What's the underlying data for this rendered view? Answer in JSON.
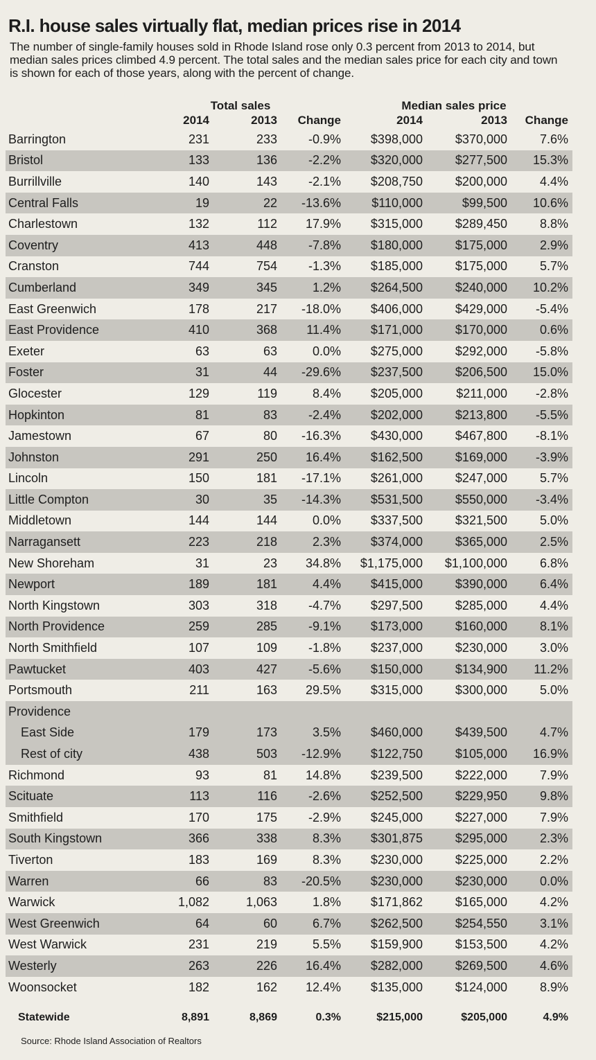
{
  "header": {
    "title": "R.I. house sales virtually flat, median prices rise in 2014",
    "subtitle": "The number of single-family houses sold in Rhode Island rose only 0.3 percent from 2013 to 2014, but median sales prices climbed 4.9 percent. The total sales and the median sales price for each city and town is shown for each of those years, along with the percent of change."
  },
  "table": {
    "group_headers": [
      "Total sales",
      "Median sales price"
    ],
    "columns": [
      "2014",
      "2013",
      "Change",
      "2014",
      "2013",
      "Change"
    ],
    "rows": [
      [
        "Barrington",
        "231",
        "233",
        "-0.9%",
        "$398,000",
        "$370,000",
        "7.6%"
      ],
      [
        "Bristol",
        "133",
        "136",
        "-2.2%",
        "$320,000",
        "$277,500",
        "15.3%"
      ],
      [
        "Burrillville",
        "140",
        "143",
        "-2.1%",
        "$208,750",
        "$200,000",
        "4.4%"
      ],
      [
        "Central Falls",
        "19",
        "22",
        "-13.6%",
        "$110,000",
        "$99,500",
        "10.6%"
      ],
      [
        "Charlestown",
        "132",
        "112",
        "17.9%",
        "$315,000",
        "$289,450",
        "8.8%"
      ],
      [
        "Coventry",
        "413",
        "448",
        "-7.8%",
        "$180,000",
        "$175,000",
        "2.9%"
      ],
      [
        "Cranston",
        "744",
        "754",
        "-1.3%",
        "$185,000",
        "$175,000",
        "5.7%"
      ],
      [
        "Cumberland",
        "349",
        "345",
        "1.2%",
        "$264,500",
        "$240,000",
        "10.2%"
      ],
      [
        "East Greenwich",
        "178",
        "217",
        "-18.0%",
        "$406,000",
        "$429,000",
        "-5.4%"
      ],
      [
        "East Providence",
        "410",
        "368",
        "11.4%",
        "$171,000",
        "$170,000",
        "0.6%"
      ],
      [
        "Exeter",
        "63",
        "63",
        "0.0%",
        "$275,000",
        "$292,000",
        "-5.8%"
      ],
      [
        "Foster",
        "31",
        "44",
        "-29.6%",
        "$237,500",
        "$206,500",
        "15.0%"
      ],
      [
        "Glocester",
        "129",
        "119",
        "8.4%",
        "$205,000",
        "$211,000",
        "-2.8%"
      ],
      [
        "Hopkinton",
        "81",
        "83",
        "-2.4%",
        "$202,000",
        "$213,800",
        "-5.5%"
      ],
      [
        "Jamestown",
        "67",
        "80",
        "-16.3%",
        "$430,000",
        "$467,800",
        "-8.1%"
      ],
      [
        "Johnston",
        "291",
        "250",
        "16.4%",
        "$162,500",
        "$169,000",
        "-3.9%"
      ],
      [
        "Lincoln",
        "150",
        "181",
        "-17.1%",
        "$261,000",
        "$247,000",
        "5.7%"
      ],
      [
        "Little Compton",
        "30",
        "35",
        "-14.3%",
        "$531,500",
        "$550,000",
        "-3.4%"
      ],
      [
        "Middletown",
        "144",
        "144",
        "0.0%",
        "$337,500",
        "$321,500",
        "5.0%"
      ],
      [
        "Narragansett",
        "223",
        "218",
        "2.3%",
        "$374,000",
        "$365,000",
        "2.5%"
      ],
      [
        "New Shoreham",
        "31",
        "23",
        "34.8%",
        "$1,175,000",
        "$1,100,000",
        "6.8%"
      ],
      [
        "Newport",
        "189",
        "181",
        "4.4%",
        "$415,000",
        "$390,000",
        "6.4%"
      ],
      [
        "North Kingstown",
        "303",
        "318",
        "-4.7%",
        "$297,500",
        "$285,000",
        "4.4%"
      ],
      [
        "North Providence",
        "259",
        "285",
        "-9.1%",
        "$173,000",
        "$160,000",
        "8.1%"
      ],
      [
        "North Smithfield",
        "107",
        "109",
        "-1.8%",
        "$237,000",
        "$230,000",
        "3.0%"
      ],
      [
        "Pawtucket",
        "403",
        "427",
        "-5.6%",
        "$150,000",
        "$134,900",
        "11.2%"
      ],
      [
        "Portsmouth",
        "211",
        "163",
        "29.5%",
        "$315,000",
        "$300,000",
        "5.0%"
      ],
      {
        "name": "Providence",
        "subrows": [
          [
            "East Side",
            "179",
            "173",
            "3.5%",
            "$460,000",
            "$439,500",
            "4.7%"
          ],
          [
            "Rest of city",
            "438",
            "503",
            "-12.9%",
            "$122,750",
            "$105,000",
            "16.9%"
          ]
        ]
      },
      [
        "Richmond",
        "93",
        "81",
        "14.8%",
        "$239,500",
        "$222,000",
        "7.9%"
      ],
      [
        "Scituate",
        "113",
        "116",
        "-2.6%",
        "$252,500",
        "$229,950",
        "9.8%"
      ],
      [
        "Smithfield",
        "170",
        "175",
        "-2.9%",
        "$245,000",
        "$227,000",
        "7.9%"
      ],
      [
        "South Kingstown",
        "366",
        "338",
        "8.3%",
        "$301,875",
        "$295,000",
        "2.3%"
      ],
      [
        "Tiverton",
        "183",
        "169",
        "8.3%",
        "$230,000",
        "$225,000",
        "2.2%"
      ],
      [
        "Warren",
        "66",
        "83",
        "-20.5%",
        "$230,000",
        "$230,000",
        "0.0%"
      ],
      [
        "Warwick",
        "1,082",
        "1,063",
        "1.8%",
        "$171,862",
        "$165,000",
        "4.2%"
      ],
      [
        "West Greenwich",
        "64",
        "60",
        "6.7%",
        "$262,500",
        "$254,550",
        "3.1%"
      ],
      [
        "West Warwick",
        "231",
        "219",
        "5.5%",
        "$159,900",
        "$153,500",
        "4.2%"
      ],
      [
        "Westerly",
        "263",
        "226",
        "16.4%",
        "$282,000",
        "$269,500",
        "4.6%"
      ],
      [
        "Woonsocket",
        "182",
        "162",
        "12.4%",
        "$135,000",
        "$124,000",
        "8.9%"
      ]
    ],
    "total": [
      "Statewide",
      "8,891",
      "8,869",
      "0.3%",
      "$215,000",
      "$205,000",
      "4.9%"
    ]
  },
  "source": "Source: Rhode Island Association of Realtors"
}
